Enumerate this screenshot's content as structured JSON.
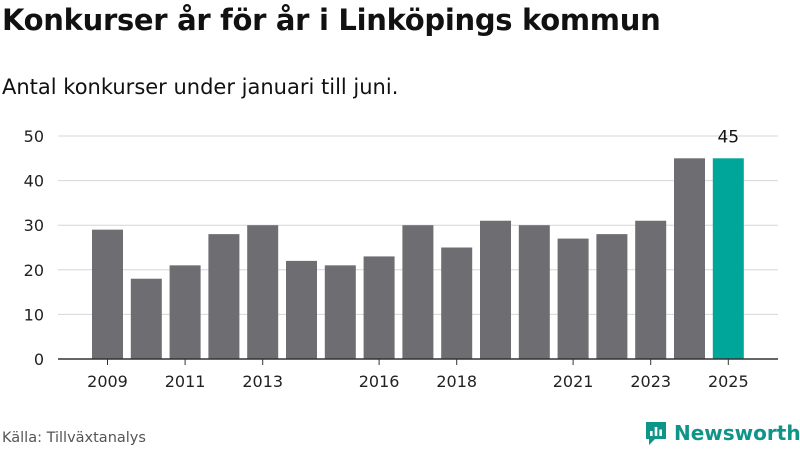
{
  "title": "Konkurser år för år i Linköpings kommun",
  "subtitle": "Antal konkurser under januari till juni.",
  "source": "Källa: Tillväxtanalys",
  "brand": {
    "name": "Newsworthy",
    "logo_icon": "newsworthy-logo-icon"
  },
  "colors": {
    "bar": "#6e6d72",
    "highlight": "#00a69a",
    "grid": "#d6d6d6",
    "axis": "#333333"
  },
  "chart_data": {
    "type": "bar",
    "title": "Konkurser år för år i Linköpings kommun",
    "subtitle": "Antal konkurser under januari till juni.",
    "categories": [
      2009,
      2010,
      2011,
      2012,
      2013,
      2014,
      2015,
      2016,
      2017,
      2018,
      2019,
      2020,
      2021,
      2022,
      2023,
      2024,
      2025
    ],
    "values": [
      29,
      18,
      21,
      28,
      30,
      22,
      21,
      23,
      30,
      25,
      31,
      30,
      27,
      28,
      31,
      45,
      45
    ],
    "x_tick_labels": [
      "2009",
      "2011",
      "2013",
      "2016",
      "2018",
      "2021",
      "2023",
      "2025"
    ],
    "y_ticks": [
      0,
      10,
      20,
      30,
      40,
      50
    ],
    "ylim": [
      0,
      50
    ],
    "highlight_category": 2025,
    "data_labels": [
      {
        "category": 2025,
        "text": "45"
      }
    ],
    "grid": true,
    "legend": "none"
  }
}
